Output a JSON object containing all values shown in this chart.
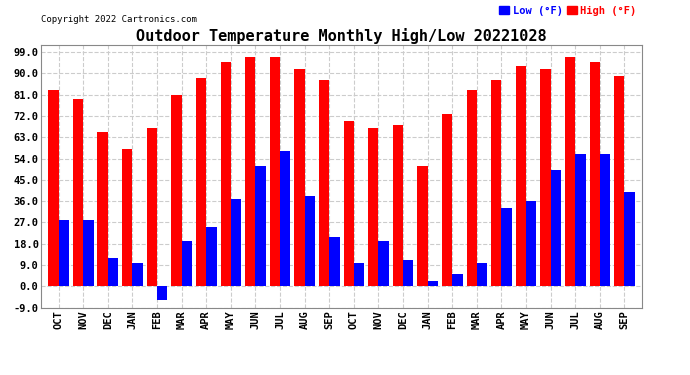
{
  "title": "Outdoor Temperature Monthly High/Low 20221028",
  "copyright": "Copyright 2022 Cartronics.com",
  "legend_low": "Low (°F)",
  "legend_high": "High (°F)",
  "months": [
    "OCT",
    "NOV",
    "DEC",
    "JAN",
    "FEB",
    "MAR",
    "APR",
    "MAY",
    "JUN",
    "JUL",
    "AUG",
    "SEP",
    "OCT",
    "NOV",
    "DEC",
    "JAN",
    "FEB",
    "MAR",
    "APR",
    "MAY",
    "JUN",
    "JUL",
    "AUG",
    "SEP"
  ],
  "high": [
    83,
    79,
    65,
    58,
    67,
    81,
    88,
    95,
    97,
    97,
    92,
    87,
    70,
    67,
    68,
    51,
    73,
    83,
    87,
    93,
    92,
    97,
    95,
    89
  ],
  "low": [
    28,
    28,
    12,
    10,
    -6,
    19,
    25,
    37,
    51,
    57,
    38,
    21,
    10,
    19,
    11,
    2,
    5,
    10,
    33,
    36,
    49,
    56,
    56,
    40
  ],
  "ylim": [
    -9,
    102
  ],
  "ytick_vals": [
    -9.0,
    0.0,
    9.0,
    18.0,
    27.0,
    36.0,
    45.0,
    54.0,
    63.0,
    72.0,
    81.0,
    90.0,
    99.0
  ],
  "bar_color_high": "#ff0000",
  "bar_color_low": "#0000ff",
  "grid_color": "#cccccc",
  "bg_color": "#ffffff",
  "title_fontsize": 11,
  "axis_fontsize": 7,
  "tick_label_fontsize": 7.5,
  "bar_width": 0.42
}
